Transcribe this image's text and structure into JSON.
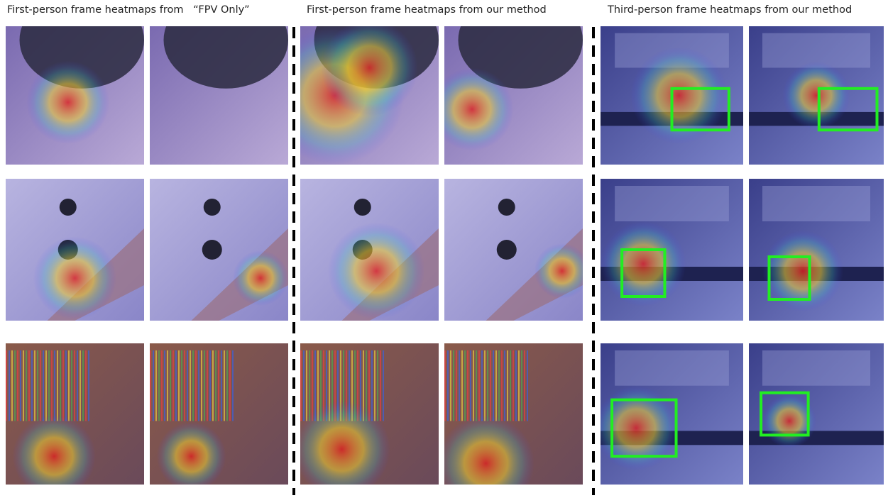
{
  "headers": [
    "First-person frame heatmaps from   “FPV Only”",
    "First-person frame heatmaps from our method",
    "Third-person frame heatmaps from our method"
  ]
}
